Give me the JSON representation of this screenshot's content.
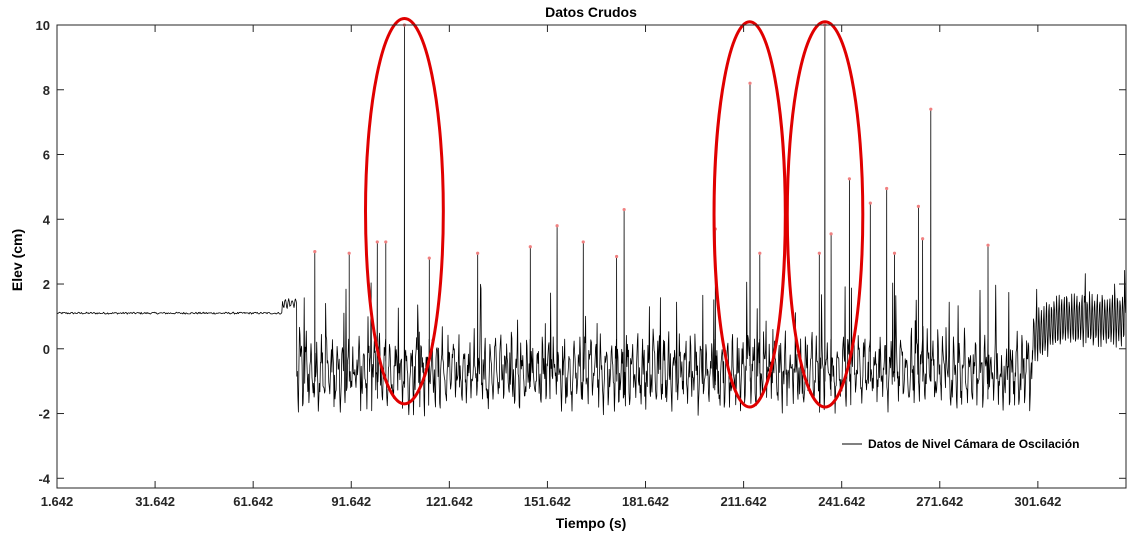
{
  "chart_data": {
    "type": "line",
    "title": "Datos Crudos",
    "xlabel": "Tiempo (s)",
    "ylabel": "Elev (cm)",
    "xlim": [
      1.642,
      328.6
    ],
    "ylim": [
      -4.3,
      10
    ],
    "x_ticks": [
      1.642,
      31.642,
      61.642,
      91.642,
      121.642,
      151.642,
      181.642,
      211.642,
      241.642,
      271.642,
      301.642
    ],
    "x_tick_labels": [
      "1.642",
      "31.642",
      "61.642",
      "91.642",
      "121.642",
      "151.642",
      "181.642",
      "211.642",
      "241.642",
      "271.642",
      "301.642"
    ],
    "y_ticks": [
      -4,
      -2,
      0,
      2,
      4,
      6,
      8,
      10
    ],
    "y_tick_labels": [
      "-4",
      "-2",
      "0",
      "2",
      "4",
      "6",
      "8",
      "10"
    ],
    "legend": {
      "position": "bottom-right",
      "entries": [
        "Datos de Nivel Cámara de Oscilación"
      ]
    },
    "series": [
      {
        "name": "Datos de Nivel Cámara de Oscilación",
        "color": "#000000",
        "description_segments": [
          {
            "x_range": [
              1.642,
              70.6
            ],
            "level": 1.1,
            "amplitude": 0.03
          },
          {
            "x_range": [
              70.6,
              75.0
            ],
            "level": 1.4,
            "amplitude": 0.12
          },
          {
            "x_range": [
              75.0,
              300.0
            ],
            "level": -0.7,
            "amplitude": 1.1
          },
          {
            "x_range": [
              300.0,
              328.6
            ],
            "level": 0.3,
            "amplitude": 1.0
          }
        ],
        "spikes": [
          {
            "x": 80.5,
            "y": 3.0
          },
          {
            "x": 91.0,
            "y": 2.95
          },
          {
            "x": 99.6,
            "y": 3.3
          },
          {
            "x": 102.2,
            "y": 3.3
          },
          {
            "x": 107.9,
            "y": 10.0
          },
          {
            "x": 115.5,
            "y": 2.8
          },
          {
            "x": 130.3,
            "y": 2.95
          },
          {
            "x": 146.4,
            "y": 3.15
          },
          {
            "x": 154.6,
            "y": 3.8
          },
          {
            "x": 162.6,
            "y": 3.3
          },
          {
            "x": 172.8,
            "y": 2.85
          },
          {
            "x": 175.1,
            "y": 4.3
          },
          {
            "x": 203.0,
            "y": 3.7
          },
          {
            "x": 213.6,
            "y": 8.2
          },
          {
            "x": 216.6,
            "y": 2.95
          },
          {
            "x": 234.8,
            "y": 2.95
          },
          {
            "x": 236.5,
            "y": 10.0
          },
          {
            "x": 238.4,
            "y": 3.55
          },
          {
            "x": 244.0,
            "y": 5.25
          },
          {
            "x": 250.4,
            "y": 4.5
          },
          {
            "x": 255.4,
            "y": 4.95
          },
          {
            "x": 257.8,
            "y": 2.95
          },
          {
            "x": 265.1,
            "y": 4.4
          },
          {
            "x": 266.4,
            "y": 3.4
          },
          {
            "x": 268.9,
            "y": 7.4
          },
          {
            "x": 286.4,
            "y": 3.2
          }
        ]
      }
    ],
    "annotations": [
      {
        "type": "ellipse",
        "color": "#e00000",
        "x_range": [
          96.0,
          119.8
        ],
        "y_range": [
          -1.7,
          10.2
        ]
      },
      {
        "type": "ellipse",
        "color": "#e00000",
        "x_range": [
          202.6,
          224.4
        ],
        "y_range": [
          -1.8,
          10.1
        ]
      },
      {
        "type": "ellipse",
        "color": "#e00000",
        "x_range": [
          225.0,
          248.1
        ],
        "y_range": [
          -1.8,
          10.1
        ]
      }
    ],
    "grid": false
  }
}
